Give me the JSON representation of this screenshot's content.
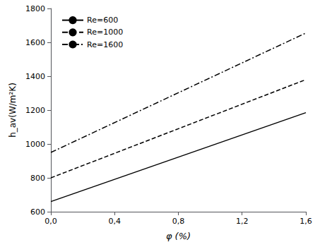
{
  "chart_data": {
    "type": "line",
    "xlabel": "φ (%)",
    "ylabel": "h_av(W/m²K)",
    "x": [
      0.0,
      1.6
    ],
    "xlim": [
      0.0,
      1.6
    ],
    "ylim": [
      600,
      1800
    ],
    "xticks": [
      {
        "value": 0.0,
        "label": "0,0"
      },
      {
        "value": 0.4,
        "label": "0,4"
      },
      {
        "value": 0.8,
        "label": "0,8"
      },
      {
        "value": 1.2,
        "label": "1,2"
      },
      {
        "value": 1.6,
        "label": "1,6"
      }
    ],
    "yticks": [
      600,
      800,
      1000,
      1200,
      1400,
      1600,
      1800
    ],
    "series": [
      {
        "name": "Re=600",
        "color": "#000000",
        "line_style": "solid",
        "values": [
          660,
          1185
        ]
      },
      {
        "name": "Re=1000",
        "color": "#000000",
        "line_style": "dashed",
        "values": [
          800,
          1380
        ]
      },
      {
        "name": "Re=1600",
        "color": "#000000",
        "line_style": "dashdot",
        "values": [
          950,
          1655
        ]
      }
    ],
    "legend": "upper left",
    "grid": false
  }
}
